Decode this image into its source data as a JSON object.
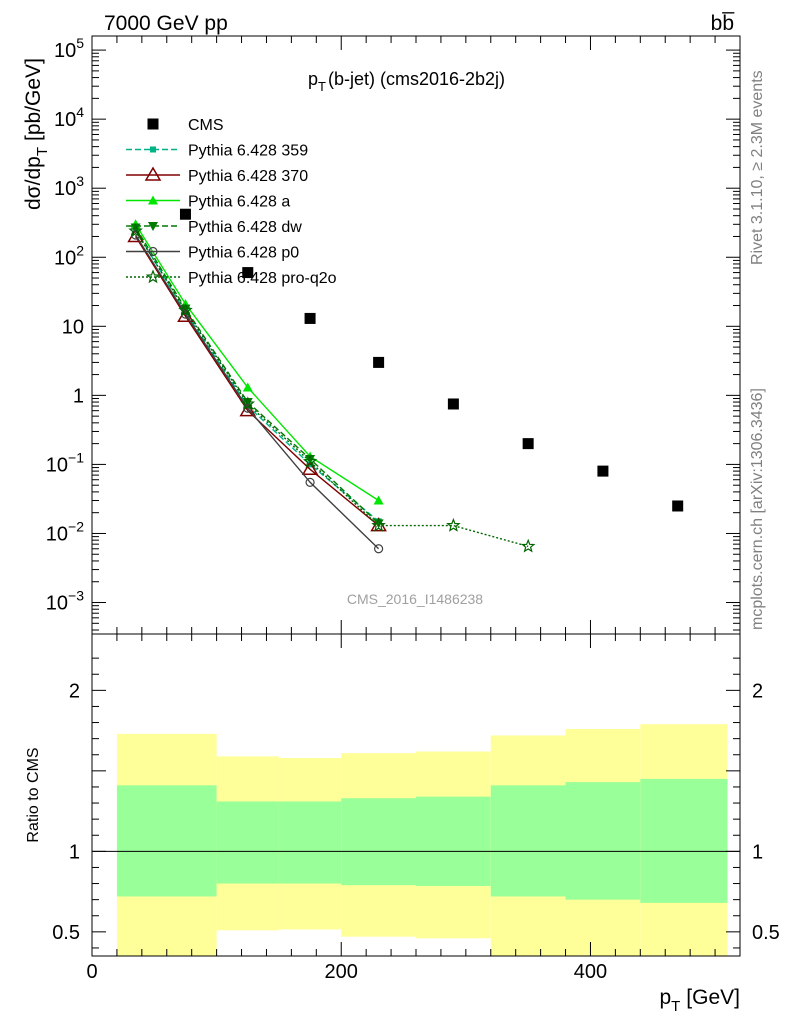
{
  "header": {
    "left": "7000 GeV pp",
    "right": "bb̅"
  },
  "side_labels": {
    "rivet": "Rivet 3.1.10, ≥ 2.3M events",
    "mcplots": "mcplots.cern.ch [arXiv:1306.3436]"
  },
  "chart_data": [
    {
      "type": "scatter",
      "title_main": "p",
      "title_sub": "T",
      "title_rest": "(b-jet) (cms2016-2b2j)",
      "ylabel": "dσ/dp",
      "ylabel_sub": "T",
      "ylabel_rest": "[pb/GeV]",
      "yscale": "log",
      "ylim": [
        0.00035,
        160000
      ],
      "xlim": [
        0,
        520
      ],
      "watermark": "CMS_2016_I1486238",
      "y_ticks": [
        {
          "v": 100000,
          "base": "10",
          "exp": "5"
        },
        {
          "v": 10000,
          "base": "10",
          "exp": "4"
        },
        {
          "v": 1000,
          "base": "10",
          "exp": "3"
        },
        {
          "v": 100,
          "base": "10",
          "exp": "2"
        },
        {
          "v": 10,
          "base": "10",
          "exp": ""
        },
        {
          "v": 1,
          "base": "1",
          "exp": ""
        },
        {
          "v": 0.1,
          "base": "10",
          "exp": "−1"
        },
        {
          "v": 0.01,
          "base": "10",
          "exp": "−2"
        },
        {
          "v": 0.001,
          "base": "10",
          "exp": "−3"
        }
      ],
      "legend": [
        {
          "label": "CMS",
          "color": "#000000",
          "marker": "square",
          "dash": "none"
        },
        {
          "label": "Pythia 6.428 359",
          "color": "#00b386",
          "marker": "smallsquare",
          "dash": "dashed"
        },
        {
          "label": "Pythia 6.428 370",
          "color": "#800000",
          "marker": "opentriangle",
          "dash": "solid"
        },
        {
          "label": "Pythia 6.428 a",
          "color": "#00e600",
          "marker": "triangle",
          "dash": "solid"
        },
        {
          "label": "Pythia 6.428 dw",
          "color": "#007a00",
          "marker": "downtriangle",
          "dash": "dashed"
        },
        {
          "label": "Pythia 6.428 p0",
          "color": "#404040",
          "marker": "opencircle",
          "dash": "solid"
        },
        {
          "label": "Pythia 6.428 pro-q2o",
          "color": "#006600",
          "marker": "star",
          "dash": "dotted"
        }
      ],
      "series": [
        {
          "name": "CMS",
          "x": [
            75,
            125,
            175,
            230,
            290,
            350,
            410,
            470
          ],
          "y": [
            420,
            60,
            13,
            3,
            0.75,
            0.2,
            0.08,
            0.025
          ]
        },
        {
          "name": "Pythia 6.428 359",
          "x": [
            35,
            75,
            125,
            175,
            230
          ],
          "y": [
            250,
            16,
            0.7,
            0.1,
            0.015
          ]
        },
        {
          "name": "Pythia 6.428 370",
          "x": [
            35,
            75,
            125,
            175,
            230
          ],
          "y": [
            200,
            14,
            0.6,
            0.085,
            0.013
          ]
        },
        {
          "name": "Pythia 6.428 a",
          "x": [
            35,
            75,
            125,
            175,
            230
          ],
          "y": [
            300,
            21,
            1.3,
            0.13,
            0.03
          ]
        },
        {
          "name": "Pythia 6.428 dw",
          "x": [
            35,
            75,
            125,
            175,
            230
          ],
          "y": [
            270,
            18,
            0.8,
            0.12,
            0.014
          ]
        },
        {
          "name": "Pythia 6.428 p0",
          "x": [
            35,
            75,
            125,
            175,
            230
          ],
          "y": [
            210,
            15,
            0.65,
            0.055,
            0.006
          ]
        },
        {
          "name": "Pythia 6.428 pro-q2o",
          "x": [
            35,
            75,
            125,
            175,
            230,
            290,
            350
          ],
          "y": [
            240,
            17,
            0.75,
            0.11,
            0.013,
            0.013,
            0.0065
          ]
        }
      ]
    },
    {
      "type": "area",
      "ylabel": "Ratio to CMS",
      "xlabel": "p",
      "xlabel_sub": "T",
      "xlabel_rest": "[GeV]",
      "xlim": [
        0,
        520
      ],
      "ylim": [
        0.35,
        2.35
      ],
      "x_ticks": [
        0,
        200,
        400
      ],
      "y_ticks": [
        0.5,
        1,
        2
      ],
      "reference": 1,
      "bins": [
        {
          "lo": 20,
          "hi": 100,
          "stat_lo": 0.72,
          "stat_hi": 1.41,
          "tot_lo": 0.35,
          "tot_hi": 1.73
        },
        {
          "lo": 100,
          "hi": 150,
          "stat_lo": 0.8,
          "stat_hi": 1.31,
          "tot_lo": 0.51,
          "tot_hi": 1.59
        },
        {
          "lo": 150,
          "hi": 200,
          "stat_lo": 0.8,
          "stat_hi": 1.31,
          "tot_lo": 0.515,
          "tot_hi": 1.58
        },
        {
          "lo": 200,
          "hi": 260,
          "stat_lo": 0.79,
          "stat_hi": 1.33,
          "tot_lo": 0.47,
          "tot_hi": 1.61
        },
        {
          "lo": 260,
          "hi": 320,
          "stat_lo": 0.785,
          "stat_hi": 1.34,
          "tot_lo": 0.46,
          "tot_hi": 1.62
        },
        {
          "lo": 320,
          "hi": 380,
          "stat_lo": 0.72,
          "stat_hi": 1.41,
          "tot_lo": 0.35,
          "tot_hi": 1.72
        },
        {
          "lo": 380,
          "hi": 440,
          "stat_lo": 0.7,
          "stat_hi": 1.43,
          "tot_lo": 0.35,
          "tot_hi": 1.76
        },
        {
          "lo": 440,
          "hi": 510,
          "stat_lo": 0.68,
          "stat_hi": 1.45,
          "tot_lo": 0.35,
          "tot_hi": 1.79
        }
      ],
      "colors": {
        "stat": "#99ff99",
        "total": "#ffff99"
      }
    }
  ]
}
